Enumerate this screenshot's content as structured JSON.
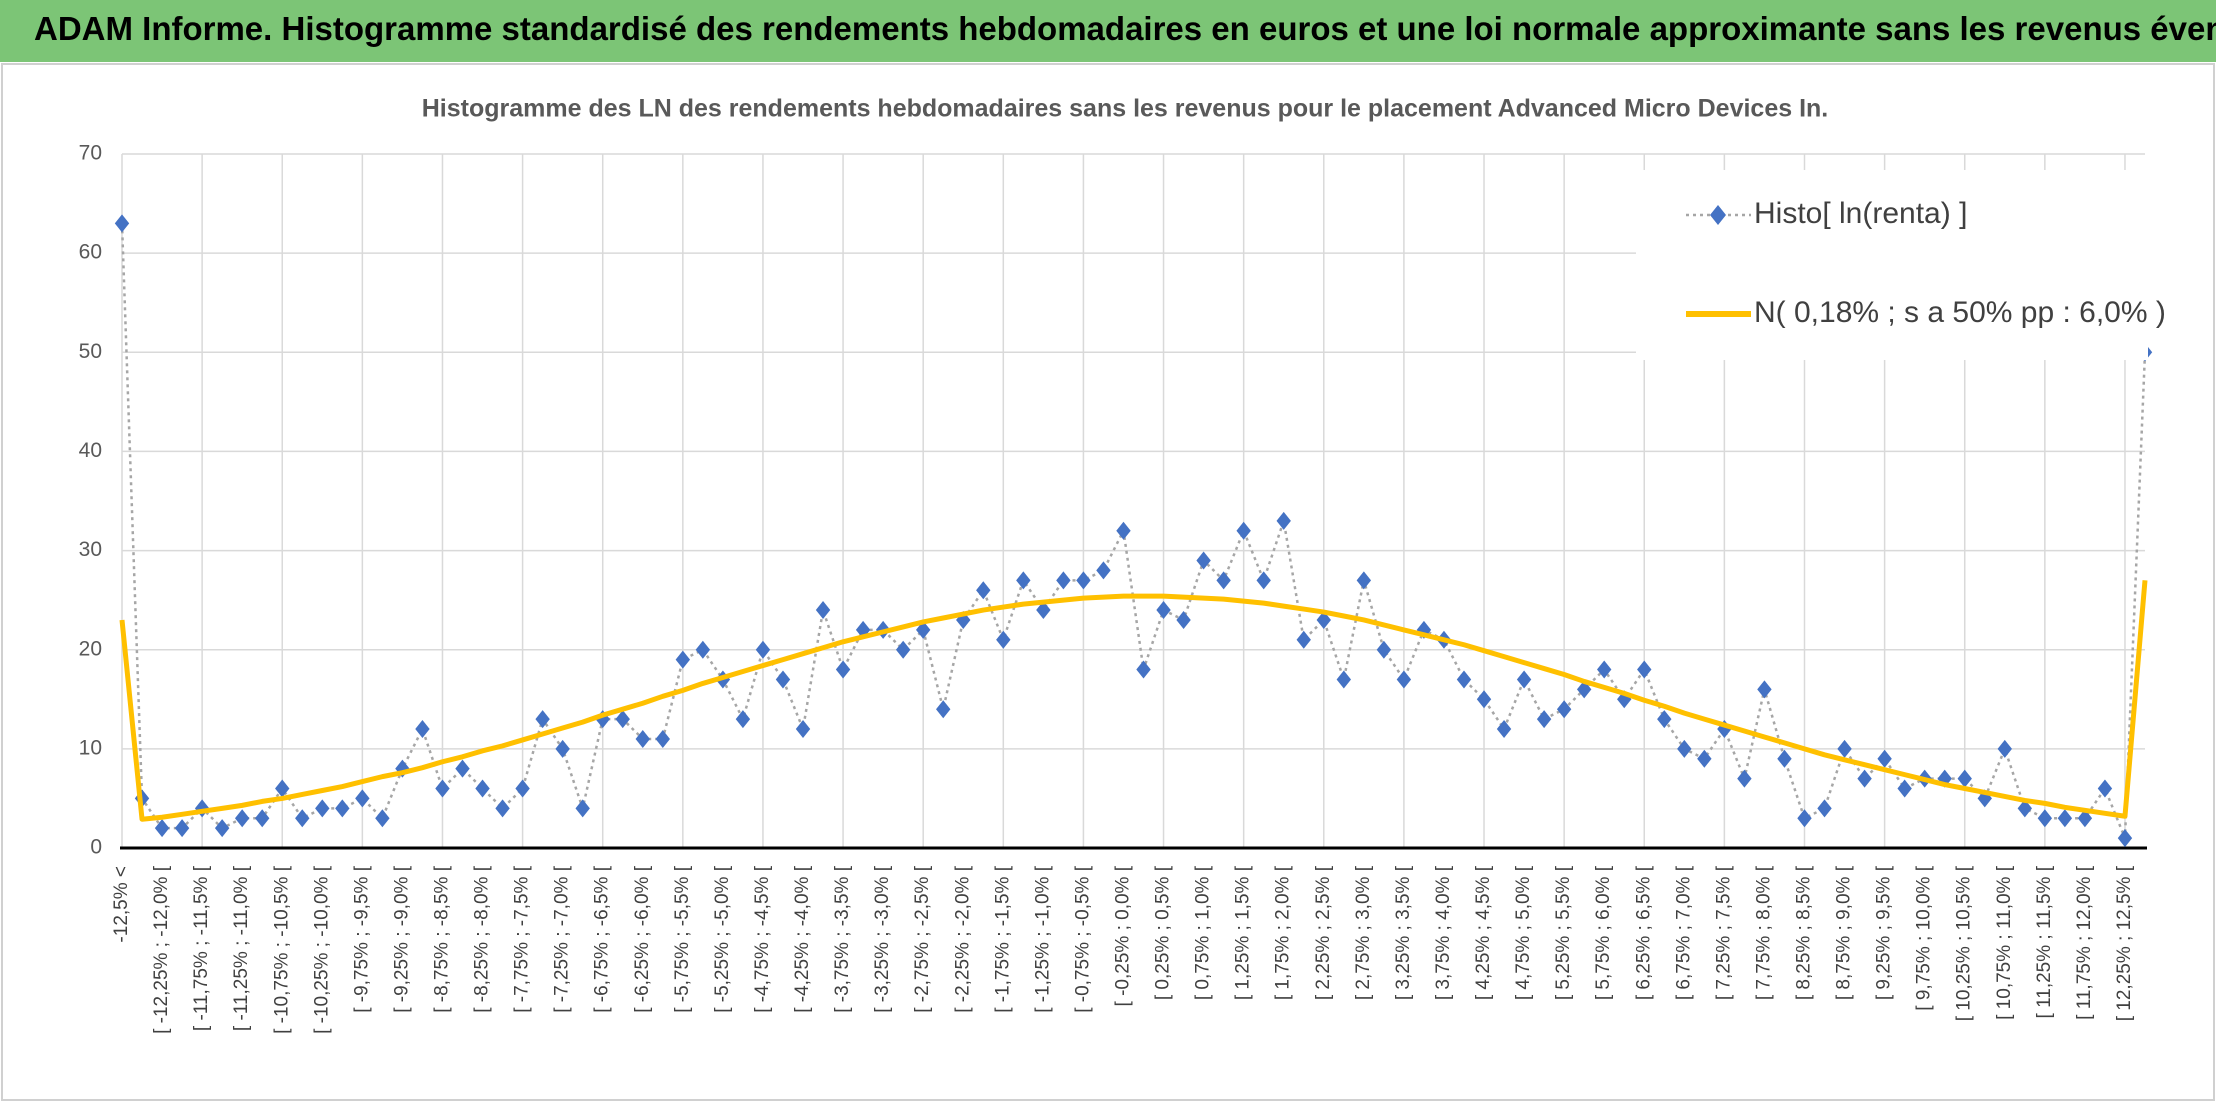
{
  "header": {
    "title": "ADAM Informe. Histogramme standardisé des rendements hebdomadaires en euros et une loi normale approximante sans les revenus éventuels"
  },
  "chart_data": {
    "type": "line",
    "title": "Histogramme des LN des rendements hebdomadaires sans les revenus pour le placement Advanced Micro Devices In.",
    "categories": [
      "-12,5% <",
      null,
      "[ -12,25% ; -12,0% [",
      null,
      "[ -11,75% ; -11,5% [",
      null,
      "[ -11,25% ; -11,0% [",
      null,
      "[ -10,75% ; -10,5% [",
      null,
      "[ -10,25% ; -10,0% [",
      null,
      "[ -9,75% ; -9,5% [",
      null,
      "[ -9,25% ; -9,0% [",
      null,
      "[ -8,75% ; -8,5% [",
      null,
      "[ -8,25% ; -8,0% [",
      null,
      "[ -7,75% ; -7,5% [",
      null,
      "[ -7,25% ; -7,0% [",
      null,
      "[ -6,75% ; -6,5% [",
      null,
      "[ -6,25% ; -6,0% [",
      null,
      "[ -5,75% ; -5,5% [",
      null,
      "[ -5,25% ; -5,0% [",
      null,
      "[ -4,75% ; -4,5% [",
      null,
      "[ -4,25% ; -4,0% [",
      null,
      "[ -3,75% ; -3,5% [",
      null,
      "[ -3,25% ; -3,0% [",
      null,
      "[ -2,75% ; -2,5% [",
      null,
      "[ -2,25% ; -2,0% [",
      null,
      "[ -1,75% ; -1,5% [",
      null,
      "[ -1,25% ; -1,0% [",
      null,
      "[ -0,75% ; -0,5% [",
      null,
      "[ -0,25% ; 0,0% [",
      null,
      "[ 0,25% ; 0,5% [",
      null,
      "[ 0,75% ; 1,0% [",
      null,
      "[ 1,25% ; 1,5% [",
      null,
      "[ 1,75% ; 2,0% [",
      null,
      "[ 2,25% ; 2,5% [",
      null,
      "[ 2,75% ; 3,0% [",
      null,
      "[ 3,25% ; 3,5% [",
      null,
      "[ 3,75% ; 4,0% [",
      null,
      "[ 4,25% ; 4,5% [",
      null,
      "[ 4,75% ; 5,0% [",
      null,
      "[ 5,25% ; 5,5% [",
      null,
      "[ 5,75% ; 6,0% [",
      null,
      "[ 6,25% ; 6,5% [",
      null,
      "[ 6,75% ; 7,0% [",
      null,
      "[ 7,25% ; 7,5% [",
      null,
      "[ 7,75% ; 8,0% [",
      null,
      "[ 8,25% ; 8,5% [",
      null,
      "[ 8,75% ; 9,0% [",
      null,
      "[ 9,25% ; 9,5% [",
      null,
      "[ 9,75% ; 10,0% [",
      null,
      "[ 10,25% ; 10,5% [",
      null,
      "[ 10,75% ; 11,0% [",
      null,
      "[ 11,25% ; 11,5% [",
      null,
      "[ 11,75% ; 12,0% [",
      null,
      "[ 12,25% ; 12,5% [",
      null
    ],
    "series": [
      {
        "name": "Histo[ ln(renta) ]",
        "color": "#4472c4",
        "line_color": "#a6a6a6",
        "values": [
          63,
          5,
          2,
          2,
          4,
          2,
          3,
          3,
          6,
          3,
          4,
          4,
          5,
          3,
          8,
          12,
          6,
          8,
          6,
          4,
          6,
          13,
          10,
          4,
          13,
          13,
          11,
          11,
          19,
          20,
          17,
          13,
          20,
          17,
          12,
          24,
          18,
          22,
          22,
          20,
          22,
          14,
          23,
          26,
          21,
          27,
          24,
          27,
          27,
          28,
          32,
          18,
          24,
          23,
          29,
          27,
          32,
          27,
          33,
          21,
          23,
          17,
          27,
          20,
          17,
          22,
          21,
          17,
          15,
          12,
          17,
          13,
          14,
          16,
          18,
          15,
          18,
          13,
          10,
          9,
          12,
          7,
          16,
          9,
          3,
          4,
          10,
          7,
          9,
          6,
          7,
          7,
          7,
          5,
          10,
          4,
          3,
          3,
          3,
          6,
          1,
          50
        ]
      },
      {
        "name": "N( 0,18% ; s a 50% pp : 6,0% )",
        "color": "#ffc000",
        "values": [
          23,
          2.9,
          3.1,
          3.4,
          3.7,
          4.0,
          4.3,
          4.7,
          5.0,
          5.4,
          5.8,
          6.2,
          6.7,
          7.2,
          7.6,
          8.1,
          8.7,
          9.2,
          9.8,
          10.3,
          10.9,
          11.5,
          12.1,
          12.7,
          13.4,
          14.0,
          14.6,
          15.3,
          15.9,
          16.6,
          17.2,
          17.8,
          18.4,
          19.0,
          19.6,
          20.2,
          20.8,
          21.3,
          21.8,
          22.3,
          22.8,
          23.2,
          23.6,
          24.0,
          24.3,
          24.6,
          24.8,
          25.0,
          25.2,
          25.3,
          25.4,
          25.4,
          25.4,
          25.3,
          25.2,
          25.1,
          24.9,
          24.7,
          24.4,
          24.1,
          23.8,
          23.4,
          23.0,
          22.5,
          22.0,
          21.5,
          21.0,
          20.5,
          19.9,
          19.3,
          18.7,
          18.1,
          17.5,
          16.8,
          16.2,
          15.6,
          14.9,
          14.3,
          13.6,
          13.0,
          12.4,
          11.8,
          11.2,
          10.6,
          10.0,
          9.4,
          8.9,
          8.4,
          7.9,
          7.4,
          6.9,
          6.4,
          6.0,
          5.6,
          5.2,
          4.8,
          4.5,
          4.1,
          3.8,
          3.5,
          3.2,
          27
        ]
      }
    ],
    "ylim": [
      0,
      70
    ],
    "yticks": [
      0,
      10,
      20,
      30,
      40,
      50,
      60,
      70
    ],
    "grid": true,
    "legend": "top-right"
  }
}
